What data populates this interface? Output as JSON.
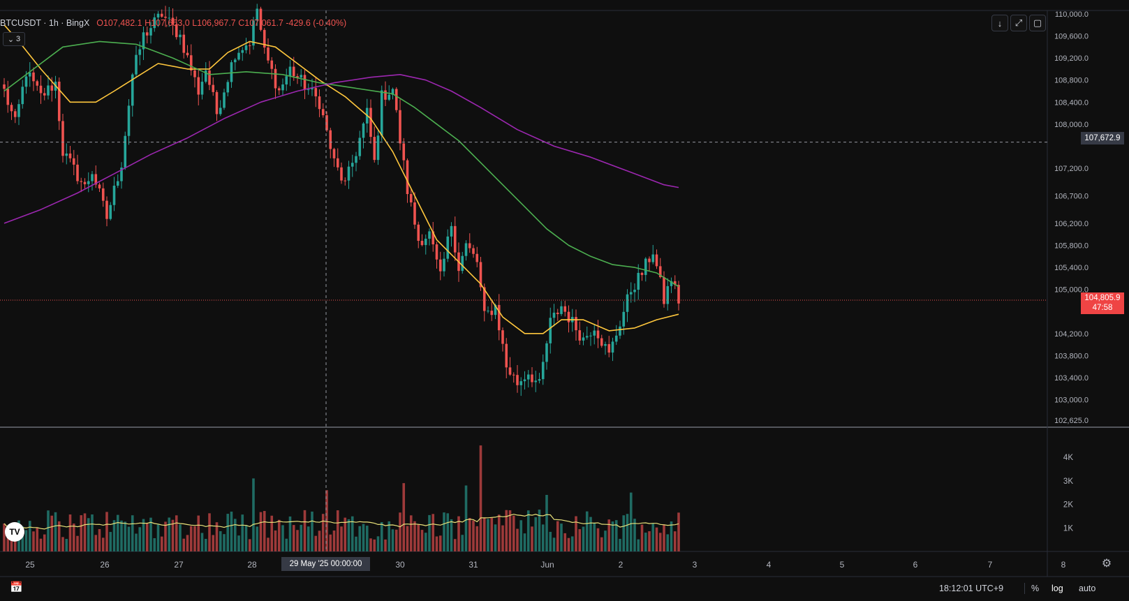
{
  "header": {
    "symbol": "BTCUSDT · 1h · BingX",
    "open_label": "O",
    "open": "107,482.1",
    "high_label": "H",
    "high": "107,653.0",
    "low_label": "L",
    "low": "106,967.7",
    "close_label": "C",
    "close": "107,061.7",
    "change": "-429.6 (-0.40%)",
    "indicator_count": "3"
  },
  "price_axis": {
    "ticks": [
      "110,000.0",
      "109,600.0",
      "109,200.0",
      "108,800.0",
      "108,400.0",
      "108,000.0",
      "107,200.0",
      "106,700.0",
      "106,200.0",
      "105,800.0",
      "105,400.0",
      "105,000.0",
      "104,200.0",
      "103,800.0",
      "103,400.0",
      "103,000.0",
      "102,625.0"
    ],
    "crosshair_price": "107,672.9",
    "last_price": "104,805.9",
    "countdown": "47:58"
  },
  "volume_axis": {
    "ticks": [
      "4K",
      "3K",
      "2K",
      "1K"
    ]
  },
  "time_axis": {
    "ticks": [
      "25",
      "26",
      "27",
      "28",
      "30",
      "31",
      "Jun",
      "2",
      "3",
      "4",
      "5",
      "6",
      "7",
      "8"
    ],
    "crosshair_date": "29 May '25   00:00:00"
  },
  "bottom": {
    "clock": "18:12:01 UTC+9",
    "percent": "%",
    "log": "log",
    "auto": "auto"
  },
  "logo_text": "TV",
  "colors": {
    "up": "#26a69a",
    "down": "#ef5350",
    "ma_fast": "#ffc73d",
    "ma_mid": "#4caf50",
    "ma_slow": "#9c27b0",
    "vol_ma": "#e9e27a"
  },
  "chart_data": {
    "type": "candlestick",
    "title": "BTCUSDT · 1h · BingX",
    "ylim": [
      102500,
      110050
    ],
    "y_ticks": [
      110000,
      109600,
      109200,
      108800,
      108400,
      108000,
      107200,
      106700,
      106200,
      105800,
      105400,
      105000,
      104200,
      103800,
      103400,
      103000,
      102625
    ],
    "candle_count": 185,
    "anchors": [
      [
        0,
        108600
      ],
      [
        3,
        108000
      ],
      [
        6,
        108950
      ],
      [
        10,
        108500
      ],
      [
        14,
        108750
      ],
      [
        16,
        107500
      ],
      [
        22,
        106850
      ],
      [
        24,
        107150
      ],
      [
        28,
        106300
      ],
      [
        32,
        107300
      ],
      [
        35,
        108900
      ],
      [
        38,
        109600
      ],
      [
        43,
        110000
      ],
      [
        48,
        109600
      ],
      [
        53,
        108600
      ],
      [
        55,
        109000
      ],
      [
        58,
        108200
      ],
      [
        63,
        109300
      ],
      [
        67,
        109500
      ],
      [
        69,
        110100
      ],
      [
        71,
        109300
      ],
      [
        75,
        108600
      ],
      [
        78,
        109000
      ],
      [
        82,
        108700
      ],
      [
        86,
        108400
      ],
      [
        90,
        107300
      ],
      [
        93,
        106900
      ],
      [
        96,
        107500
      ],
      [
        99,
        108200
      ],
      [
        101,
        107300
      ],
      [
        103,
        108500
      ],
      [
        106,
        108650
      ],
      [
        108,
        107700
      ],
      [
        110,
        106800
      ],
      [
        113,
        105900
      ],
      [
        116,
        106000
      ],
      [
        119,
        105200
      ],
      [
        122,
        106200
      ],
      [
        124,
        105400
      ],
      [
        126,
        105800
      ],
      [
        129,
        105500
      ],
      [
        131,
        104500
      ],
      [
        134,
        104700
      ],
      [
        137,
        103600
      ],
      [
        140,
        103300
      ],
      [
        143,
        103500
      ],
      [
        146,
        103250
      ],
      [
        149,
        104400
      ],
      [
        152,
        104700
      ],
      [
        155,
        104400
      ],
      [
        158,
        104100
      ],
      [
        161,
        104350
      ],
      [
        165,
        103800
      ],
      [
        168,
        104400
      ],
      [
        171,
        105000
      ],
      [
        174,
        105300
      ],
      [
        177,
        105700
      ],
      [
        180,
        104800
      ],
      [
        182,
        105200
      ],
      [
        184,
        104800
      ]
    ],
    "volume_ylim": [
      0,
      4800
    ],
    "volume_ticks": [
      4000,
      3000,
      2000,
      1000
    ],
    "series": [
      {
        "name": "MA fast",
        "color": "#ffc73d",
        "points": [
          [
            0,
            109800
          ],
          [
            4,
            109500
          ],
          [
            10,
            109000
          ],
          [
            18,
            108400
          ],
          [
            25,
            108400
          ],
          [
            30,
            108600
          ],
          [
            36,
            108850
          ],
          [
            42,
            109100
          ],
          [
            50,
            109000
          ],
          [
            56,
            109000
          ],
          [
            61,
            109300
          ],
          [
            67,
            109500
          ],
          [
            74,
            109400
          ],
          [
            80,
            109100
          ],
          [
            86,
            108800
          ],
          [
            93,
            108500
          ],
          [
            100,
            108100
          ],
          [
            106,
            107500
          ],
          [
            112,
            106700
          ],
          [
            118,
            105900
          ],
          [
            124,
            105500
          ],
          [
            130,
            105100
          ],
          [
            136,
            104500
          ],
          [
            142,
            104200
          ],
          [
            147,
            104200
          ],
          [
            152,
            104450
          ],
          [
            158,
            104450
          ],
          [
            165,
            104250
          ],
          [
            172,
            104300
          ],
          [
            178,
            104450
          ],
          [
            184,
            104550
          ]
        ]
      },
      {
        "name": "MA mid",
        "color": "#4caf50",
        "points": [
          [
            0,
            108600
          ],
          [
            8,
            109000
          ],
          [
            16,
            109400
          ],
          [
            26,
            109500
          ],
          [
            36,
            109450
          ],
          [
            46,
            109200
          ],
          [
            56,
            108900
          ],
          [
            66,
            108950
          ],
          [
            76,
            108900
          ],
          [
            86,
            108750
          ],
          [
            96,
            108650
          ],
          [
            106,
            108550
          ],
          [
            112,
            108300
          ],
          [
            118,
            108000
          ],
          [
            124,
            107700
          ],
          [
            130,
            107300
          ],
          [
            136,
            106900
          ],
          [
            142,
            106500
          ],
          [
            148,
            106100
          ],
          [
            154,
            105800
          ],
          [
            160,
            105600
          ],
          [
            166,
            105450
          ],
          [
            172,
            105400
          ],
          [
            178,
            105300
          ],
          [
            184,
            105050
          ]
        ]
      },
      {
        "name": "MA slow",
        "color": "#9c27b0",
        "points": [
          [
            0,
            106200
          ],
          [
            10,
            106450
          ],
          [
            20,
            106750
          ],
          [
            30,
            107100
          ],
          [
            40,
            107450
          ],
          [
            50,
            107750
          ],
          [
            60,
            108100
          ],
          [
            70,
            108400
          ],
          [
            80,
            108600
          ],
          [
            90,
            108750
          ],
          [
            100,
            108850
          ],
          [
            108,
            108900
          ],
          [
            115,
            108800
          ],
          [
            122,
            108600
          ],
          [
            130,
            108300
          ],
          [
            140,
            107900
          ],
          [
            150,
            107600
          ],
          [
            160,
            107400
          ],
          [
            170,
            107150
          ],
          [
            180,
            106900
          ],
          [
            184,
            106850
          ]
        ]
      }
    ],
    "volume_spikes": [
      [
        68,
        3100
      ],
      [
        88,
        2600
      ],
      [
        109,
        2900
      ],
      [
        126,
        2800
      ],
      [
        130,
        4500
      ],
      [
        148,
        2400
      ],
      [
        171,
        2500
      ]
    ]
  }
}
